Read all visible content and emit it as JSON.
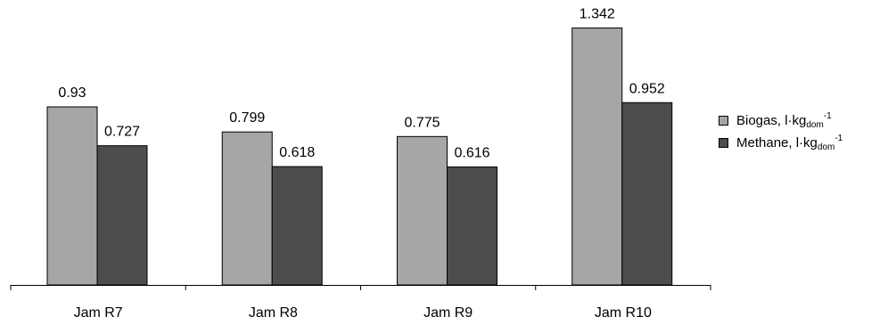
{
  "chart_data": {
    "type": "bar",
    "categories": [
      "Jam R7",
      "Jam R8",
      "Jam R9",
      "Jam R10"
    ],
    "series": [
      {
        "name": "Biogas, l·kg_dom^-1",
        "legend": {
          "main": "Biogas, l·kg",
          "sub": "dom",
          "sup": "-1"
        },
        "values": [
          0.93,
          0.799,
          0.775,
          1.342
        ],
        "labels": [
          "0.93",
          "0.799",
          "0.775",
          "1.342"
        ],
        "color": "#a6a6a6"
      },
      {
        "name": "Methane, l·kg_dom^-1",
        "legend": {
          "main": "Methane, l·kg",
          "sub": "dom",
          "sup": "-1"
        },
        "values": [
          0.727,
          0.618,
          0.616,
          0.952
        ],
        "labels": [
          "0.727",
          "0.618",
          "0.616",
          "0.952"
        ],
        "color": "#4d4d4d"
      }
    ],
    "title": "",
    "xlabel": "",
    "ylabel": "",
    "ylim": [
      0,
      1.4
    ],
    "grid": false,
    "legend_position": "right"
  }
}
